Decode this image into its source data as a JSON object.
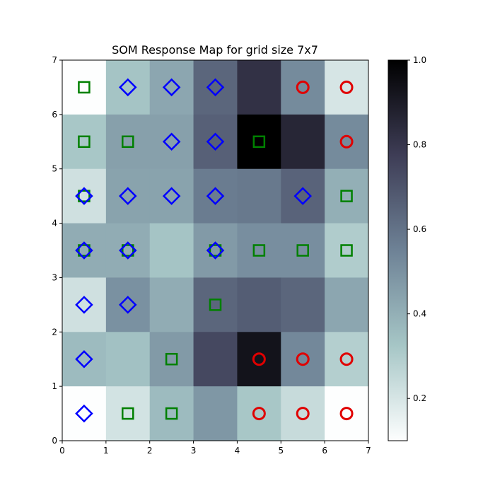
{
  "chart_data": {
    "type": "heatmap",
    "title": "SOM Response Map for grid size 7x7",
    "xlabel": "",
    "ylabel": "",
    "xlim": [
      0,
      7
    ],
    "ylim": [
      0,
      7
    ],
    "x_ticks": [
      "0",
      "1",
      "2",
      "3",
      "4",
      "5",
      "6",
      "7"
    ],
    "y_ticks": [
      "0",
      "1",
      "2",
      "3",
      "4",
      "5",
      "6",
      "7"
    ],
    "colormap": "bone_r",
    "colorbar": {
      "range": [
        0.1,
        1.0
      ],
      "ticks": [
        0.2,
        0.4,
        0.6,
        0.8,
        1.0
      ],
      "tick_labels": [
        "0.2",
        "0.4",
        "0.6",
        "0.8",
        "1.0"
      ]
    },
    "grid": false,
    "rows_top_to_bottom": [
      [
        0.1,
        0.33,
        0.43,
        0.64,
        0.82,
        0.52,
        0.2
      ],
      [
        0.32,
        0.45,
        0.45,
        0.66,
        1.0,
        0.86,
        0.52
      ],
      [
        0.22,
        0.44,
        0.44,
        0.57,
        0.58,
        0.65,
        0.4
      ],
      [
        0.41,
        0.41,
        0.33,
        0.47,
        0.51,
        0.51,
        0.3
      ],
      [
        0.22,
        0.5,
        0.41,
        0.64,
        0.67,
        0.64,
        0.43
      ],
      [
        0.36,
        0.34,
        0.47,
        0.74,
        0.93,
        0.53,
        0.29
      ],
      [
        0.1,
        0.21,
        0.36,
        0.48,
        0.32,
        0.24,
        0.1
      ]
    ],
    "markers": [
      {
        "shape": "square",
        "color": "#008000",
        "x": 0.5,
        "y": 6.5
      },
      {
        "shape": "diamond",
        "color": "#0000ff",
        "x": 1.5,
        "y": 6.5
      },
      {
        "shape": "diamond",
        "color": "#0000ff",
        "x": 2.5,
        "y": 6.5
      },
      {
        "shape": "diamond",
        "color": "#0000ff",
        "x": 3.5,
        "y": 6.5
      },
      {
        "shape": "circle",
        "color": "#e00000",
        "x": 5.5,
        "y": 6.5
      },
      {
        "shape": "circle",
        "color": "#e00000",
        "x": 6.5,
        "y": 6.5
      },
      {
        "shape": "square",
        "color": "#008000",
        "x": 0.5,
        "y": 5.5
      },
      {
        "shape": "square",
        "color": "#008000",
        "x": 1.5,
        "y": 5.5
      },
      {
        "shape": "diamond",
        "color": "#0000ff",
        "x": 2.5,
        "y": 5.5
      },
      {
        "shape": "diamond",
        "color": "#0000ff",
        "x": 3.5,
        "y": 5.5
      },
      {
        "shape": "square",
        "color": "#008000",
        "x": 4.5,
        "y": 5.5
      },
      {
        "shape": "circle",
        "color": "#e00000",
        "x": 6.5,
        "y": 5.5
      },
      {
        "shape": "square",
        "color": "#008000",
        "x": 0.5,
        "y": 4.5
      },
      {
        "shape": "diamond",
        "color": "#0000ff",
        "x": 0.5,
        "y": 4.5
      },
      {
        "shape": "diamond",
        "color": "#0000ff",
        "x": 1.5,
        "y": 4.5
      },
      {
        "shape": "diamond",
        "color": "#0000ff",
        "x": 2.5,
        "y": 4.5
      },
      {
        "shape": "diamond",
        "color": "#0000ff",
        "x": 3.5,
        "y": 4.5
      },
      {
        "shape": "diamond",
        "color": "#0000ff",
        "x": 5.5,
        "y": 4.5
      },
      {
        "shape": "square",
        "color": "#008000",
        "x": 6.5,
        "y": 4.5
      },
      {
        "shape": "square",
        "color": "#008000",
        "x": 0.5,
        "y": 3.5
      },
      {
        "shape": "diamond",
        "color": "#0000ff",
        "x": 0.5,
        "y": 3.5
      },
      {
        "shape": "square",
        "color": "#008000",
        "x": 1.5,
        "y": 3.5
      },
      {
        "shape": "diamond",
        "color": "#0000ff",
        "x": 1.5,
        "y": 3.5
      },
      {
        "shape": "square",
        "color": "#008000",
        "x": 3.5,
        "y": 3.5
      },
      {
        "shape": "diamond",
        "color": "#0000ff",
        "x": 3.5,
        "y": 3.5
      },
      {
        "shape": "square",
        "color": "#008000",
        "x": 4.5,
        "y": 3.5
      },
      {
        "shape": "square",
        "color": "#008000",
        "x": 5.5,
        "y": 3.5
      },
      {
        "shape": "square",
        "color": "#008000",
        "x": 6.5,
        "y": 3.5
      },
      {
        "shape": "diamond",
        "color": "#0000ff",
        "x": 0.5,
        "y": 2.5
      },
      {
        "shape": "diamond",
        "color": "#0000ff",
        "x": 1.5,
        "y": 2.5
      },
      {
        "shape": "square",
        "color": "#008000",
        "x": 3.5,
        "y": 2.5
      },
      {
        "shape": "diamond",
        "color": "#0000ff",
        "x": 0.5,
        "y": 1.5
      },
      {
        "shape": "square",
        "color": "#008000",
        "x": 2.5,
        "y": 1.5
      },
      {
        "shape": "circle",
        "color": "#e00000",
        "x": 4.5,
        "y": 1.5
      },
      {
        "shape": "circle",
        "color": "#e00000",
        "x": 5.5,
        "y": 1.5
      },
      {
        "shape": "circle",
        "color": "#e00000",
        "x": 6.5,
        "y": 1.5
      },
      {
        "shape": "diamond",
        "color": "#0000ff",
        "x": 0.5,
        "y": 0.5
      },
      {
        "shape": "square",
        "color": "#008000",
        "x": 1.5,
        "y": 0.5
      },
      {
        "shape": "square",
        "color": "#008000",
        "x": 2.5,
        "y": 0.5
      },
      {
        "shape": "circle",
        "color": "#e00000",
        "x": 4.5,
        "y": 0.5
      },
      {
        "shape": "circle",
        "color": "#e00000",
        "x": 5.5,
        "y": 0.5
      },
      {
        "shape": "circle",
        "color": "#e00000",
        "x": 6.5,
        "y": 0.5
      }
    ]
  }
}
